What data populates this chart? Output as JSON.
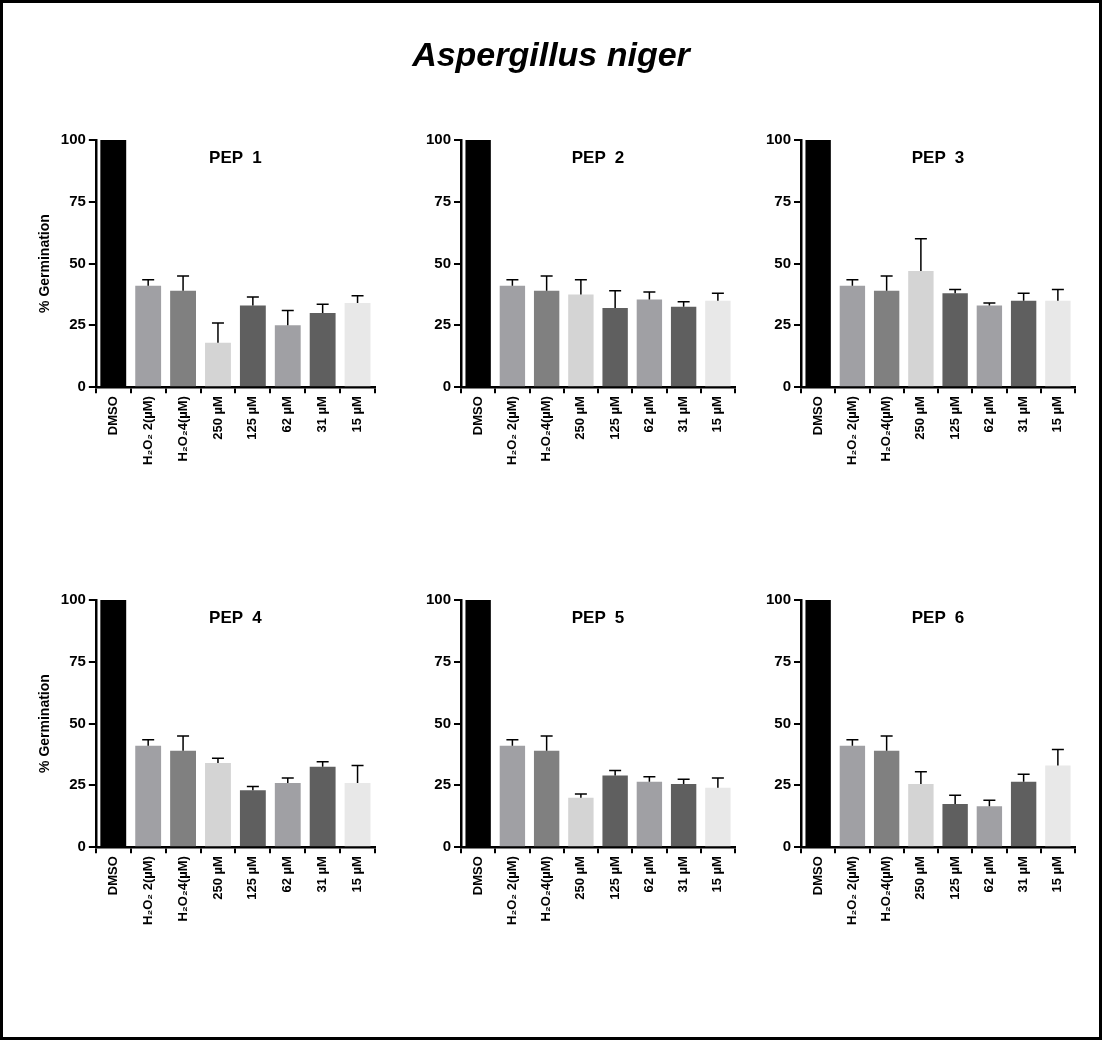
{
  "chart_data": [
    {
      "type": "other",
      "title": "Aspergillus niger"
    },
    {
      "type": "bar",
      "title": "PEP  1",
      "ylabel": "% Germination",
      "categories": [
        "DMSO",
        "H₂O₂ 2(µM)",
        "H₂O₂4(µM)",
        "250 µM",
        "125 µM",
        "62 µM",
        "31 µM",
        "15 µM"
      ],
      "values": [
        100,
        41,
        39,
        18,
        33,
        25,
        30,
        34
      ],
      "errors": [
        null,
        [
          41,
          43.5
        ],
        [
          39,
          45
        ],
        [
          18,
          26
        ],
        [
          33,
          36.5
        ],
        [
          25,
          31
        ],
        [
          30,
          33.5
        ],
        [
          34,
          37
        ]
      ],
      "colors": [
        "#000000",
        "#a0a0a4",
        "#808080",
        "#d4d4d4",
        "#5f5f5f",
        "#a0a0a4",
        "#5f5f5f",
        "#e8e8e8"
      ],
      "ylim": [
        0,
        100
      ],
      "yticks": [
        0,
        25,
        50,
        75,
        100
      ]
    },
    {
      "type": "bar",
      "title": "PEP  2",
      "categories": [
        "DMSO",
        "H₂O₂ 2(µM)",
        "H₂O₂4(µM)",
        "250 µM",
        "125 µM",
        "62 µM",
        "31 µM",
        "15 µM"
      ],
      "values": [
        100,
        41,
        39,
        37.5,
        32,
        35.5,
        32.5,
        35
      ],
      "errors": [
        null,
        [
          41,
          43.5
        ],
        [
          39,
          45
        ],
        [
          37.5,
          43.5
        ],
        [
          32,
          39
        ],
        [
          35.5,
          38.5
        ],
        [
          32.5,
          34.5
        ],
        [
          35,
          38
        ]
      ],
      "colors": [
        "#000000",
        "#a0a0a4",
        "#808080",
        "#d4d4d4",
        "#5f5f5f",
        "#a0a0a4",
        "#5f5f5f",
        "#e8e8e8"
      ],
      "ylim": [
        0,
        100
      ],
      "yticks": [
        0,
        25,
        50,
        75,
        100
      ]
    },
    {
      "type": "bar",
      "title": "PEP  3",
      "categories": [
        "DMSO",
        "H₂O₂ 2(µM)",
        "H₂O₂4(µM)",
        "250 µM",
        "125 µM",
        "62 µM",
        "31 µM",
        "15 µM"
      ],
      "values": [
        100,
        41,
        39,
        47,
        38,
        33,
        35,
        35
      ],
      "errors": [
        null,
        [
          41,
          43.5
        ],
        [
          39,
          45
        ],
        [
          47,
          60
        ],
        [
          38,
          39.5
        ],
        [
          33,
          34
        ],
        [
          35,
          38
        ],
        [
          35,
          39.5
        ]
      ],
      "colors": [
        "#000000",
        "#a0a0a4",
        "#808080",
        "#d4d4d4",
        "#5f5f5f",
        "#a0a0a4",
        "#5f5f5f",
        "#e8e8e8"
      ],
      "ylim": [
        0,
        100
      ],
      "yticks": [
        0,
        25,
        50,
        75,
        100
      ]
    },
    {
      "type": "bar",
      "title": "PEP  4",
      "ylabel": "% Germination",
      "categories": [
        "DMSO",
        "H₂O₂ 2(µM)",
        "H₂O₂4(µM)",
        "250 µM",
        "125 µM",
        "62 µM",
        "31 µM",
        "15 µM"
      ],
      "values": [
        100,
        41,
        39,
        34,
        23,
        26,
        32.5,
        26
      ],
      "errors": [
        null,
        [
          41,
          43.5
        ],
        [
          39,
          45
        ],
        [
          34,
          36
        ],
        [
          23,
          24.5
        ],
        [
          26,
          28
        ],
        [
          32.5,
          34.5
        ],
        [
          26,
          33
        ]
      ],
      "colors": [
        "#000000",
        "#a0a0a4",
        "#808080",
        "#d4d4d4",
        "#5f5f5f",
        "#a0a0a4",
        "#5f5f5f",
        "#e8e8e8"
      ],
      "ylim": [
        0,
        100
      ],
      "yticks": [
        0,
        25,
        50,
        75,
        100
      ]
    },
    {
      "type": "bar",
      "title": "PEP  5",
      "categories": [
        "DMSO",
        "H₂O₂ 2(µM)",
        "H₂O₂4(µM)",
        "250 µM",
        "125 µM",
        "62 µM",
        "31 µM",
        "15 µM"
      ],
      "values": [
        100,
        41,
        39,
        20,
        29,
        26.5,
        25.5,
        24
      ],
      "errors": [
        null,
        [
          41,
          43.5
        ],
        [
          39,
          45
        ],
        [
          20,
          21.5
        ],
        [
          29,
          31
        ],
        [
          26.5,
          28.5
        ],
        [
          25.5,
          27.5
        ],
        [
          24,
          28
        ]
      ],
      "colors": [
        "#000000",
        "#a0a0a4",
        "#808080",
        "#d4d4d4",
        "#5f5f5f",
        "#a0a0a4",
        "#5f5f5f",
        "#e8e8e8"
      ],
      "ylim": [
        0,
        100
      ],
      "yticks": [
        0,
        25,
        50,
        75,
        100
      ]
    },
    {
      "type": "bar",
      "title": "PEP  6",
      "categories": [
        "DMSO",
        "H₂O₂ 2(µM)",
        "H₂O₂4(µM)",
        "250 µM",
        "125 µM",
        "62 µM",
        "31 µM",
        "15 µM"
      ],
      "values": [
        100,
        41,
        39,
        25.5,
        17.5,
        16.5,
        26.5,
        33
      ],
      "errors": [
        null,
        [
          41,
          43.5
        ],
        [
          39,
          45
        ],
        [
          25.5,
          30.5
        ],
        [
          17.5,
          21
        ],
        [
          16.5,
          19
        ],
        [
          26.5,
          29.5
        ],
        [
          33,
          39.5
        ]
      ],
      "colors": [
        "#000000",
        "#a0a0a4",
        "#808080",
        "#d4d4d4",
        "#5f5f5f",
        "#a0a0a4",
        "#5f5f5f",
        "#e8e8e8"
      ],
      "ylim": [
        0,
        100
      ],
      "yticks": [
        0,
        25,
        50,
        75,
        100
      ]
    }
  ]
}
